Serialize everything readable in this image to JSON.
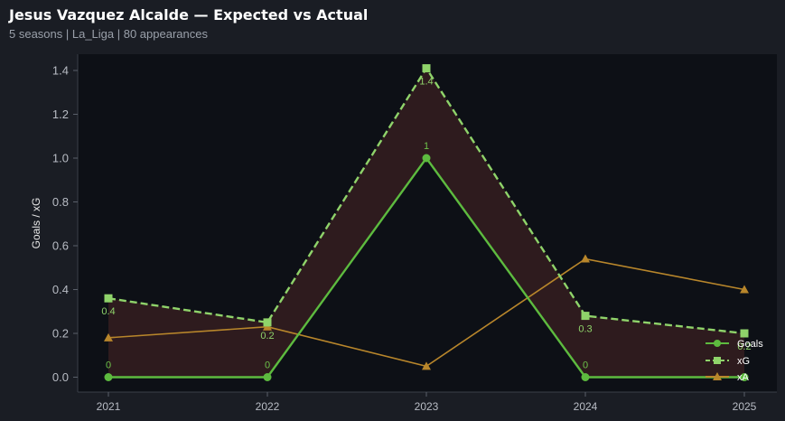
{
  "header": {
    "title": "Jesus Vazquez Alcalde — Expected vs Actual",
    "subtitle": "5 seasons | La_Liga | 80 appearances"
  },
  "chart_data": {
    "type": "line",
    "x": [
      "2021",
      "2022",
      "2023",
      "2024",
      "2025"
    ],
    "ylabel": "Goals / xG",
    "ylim": [
      -0.07,
      1.47
    ],
    "yticks": [
      "0.0",
      "0.2",
      "0.4",
      "0.6",
      "0.8",
      "1.0",
      "1.2",
      "1.4"
    ],
    "legend_position": "bottom-right",
    "fill_between": [
      "Goals",
      "xG"
    ],
    "colors": {
      "background": "#1a1d24",
      "plot_area": "#0d1016",
      "goals": "#5dbb3f",
      "xg": "#8fd36a",
      "xa": "#b8862b",
      "fill": "#2e1b1e"
    },
    "series": [
      {
        "name": "Goals",
        "values": [
          0,
          0,
          1,
          0,
          0
        ],
        "labels": [
          "0",
          "0",
          "1",
          "0",
          ""
        ],
        "marker": "circle",
        "style": "solid"
      },
      {
        "name": "xG",
        "values": [
          0.36,
          0.25,
          1.41,
          0.28,
          0.2
        ],
        "labels": [
          "0.4",
          "0.2",
          "1.4",
          "0.3",
          "0.2"
        ],
        "marker": "square",
        "style": "dashed"
      },
      {
        "name": "xA",
        "values": [
          0.18,
          0.23,
          0.05,
          0.54,
          0.4
        ],
        "marker": "triangle",
        "style": "solid"
      }
    ]
  }
}
